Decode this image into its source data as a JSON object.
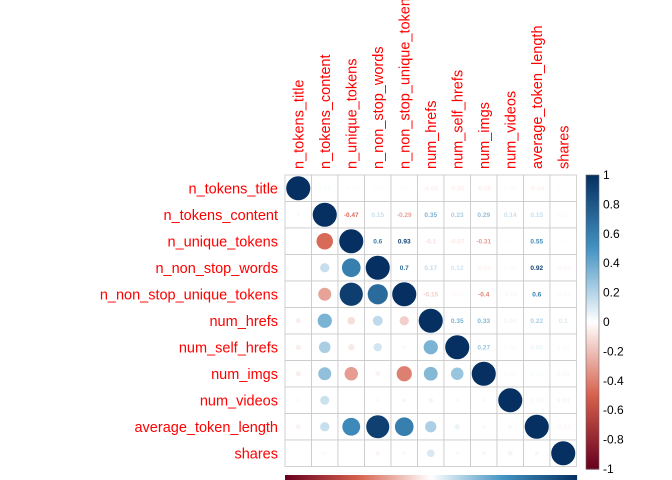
{
  "chart_data": {
    "type": "heatmap",
    "method": "mixed: circles in lower triangle, coefficients in upper triangle",
    "variables": [
      "n_tokens_title",
      "n_tokens_content",
      "n_unique_tokens",
      "n_non_stop_words",
      "n_non_stop_unique_tokens",
      "num_hrefs",
      "num_self_hrefs",
      "num_imgs",
      "num_videos",
      "average_token_length",
      "shares"
    ],
    "matrix": [
      [
        1,
        0.02,
        -0.01,
        -0.01,
        -0.01,
        -0.05,
        -0.05,
        -0.05,
        0.02,
        -0.04,
        0.01
      ],
      [
        0.02,
        1,
        -0.47,
        0.15,
        -0.29,
        0.35,
        0.23,
        0.29,
        0.14,
        0.15,
        0.02
      ],
      [
        -0.01,
        -0.47,
        1,
        0.6,
        0.93,
        -0.1,
        -0.07,
        -0.31,
        0.01,
        0.55,
        -0.01
      ],
      [
        -0.01,
        0.15,
        0.6,
        1,
        0.7,
        0.17,
        0.12,
        -0.04,
        0.02,
        0.92,
        -0.03
      ],
      [
        -0.01,
        -0.29,
        0.93,
        0.7,
        1,
        -0.15,
        -0.02,
        -0.4,
        -0.03,
        0.6,
        -0.02
      ],
      [
        -0.05,
        0.35,
        -0.1,
        0.17,
        -0.15,
        1,
        0.35,
        0.33,
        0.04,
        0.22,
        0.1
      ],
      [
        -0.05,
        0.23,
        -0.07,
        0.12,
        -0.02,
        0.35,
        1,
        0.27,
        0.02,
        0.05,
        0.02
      ],
      [
        -0.05,
        0.29,
        -0.31,
        -0.04,
        -0.4,
        0.33,
        0.27,
        1,
        0.02,
        0.02,
        0.03
      ],
      [
        0.02,
        0.14,
        0.01,
        0.02,
        -0.03,
        0.04,
        0.02,
        0.02,
        1,
        0.03,
        0.04
      ],
      [
        -0.04,
        0.15,
        0.55,
        0.92,
        0.6,
        0.22,
        0.05,
        0.02,
        0.03,
        1,
        -0.03
      ],
      [
        0.01,
        0.02,
        -0.01,
        -0.03,
        -0.02,
        0.1,
        0.02,
        0.03,
        0.04,
        -0.03,
        1
      ]
    ],
    "colorbar": {
      "range": [
        -1,
        1
      ],
      "ticks": [
        "1",
        "0.8",
        "0.6",
        "0.4",
        "0.2",
        "0",
        "-0.2",
        "-0.4",
        "-0.6",
        "-0.8",
        "-1"
      ],
      "colors": {
        "negative_end": "#67001F",
        "negative_mid": "#D6604D",
        "neutral": "#FFFFFF",
        "positive_mid": "#4393C3",
        "positive_end": "#053061"
      }
    },
    "grid": true,
    "label_color": "#FF0000"
  }
}
